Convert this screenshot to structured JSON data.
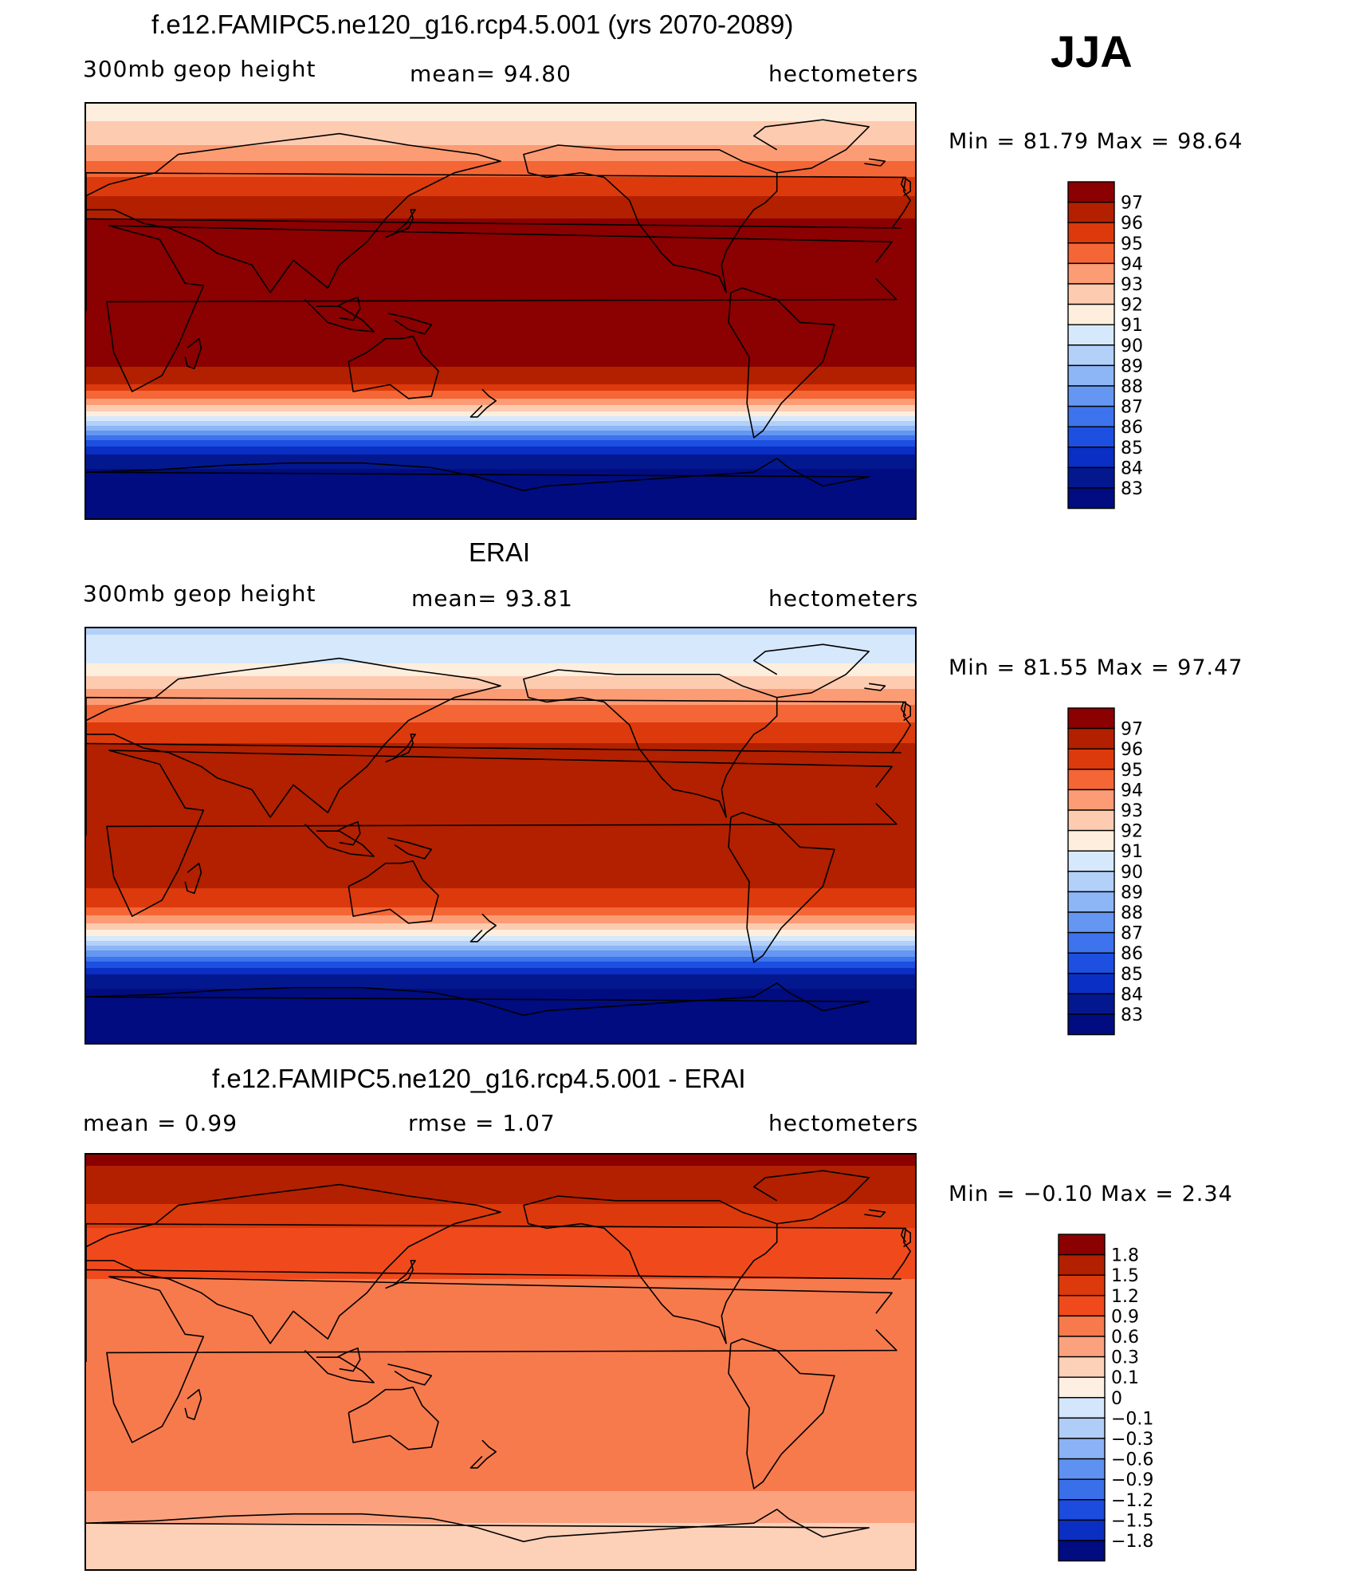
{
  "season": "JJA",
  "panels": [
    {
      "title": "f.e12.FAMIPC5.ne120_g16.rcp4.5.001 (yrs 2070-2089)",
      "left_label": "300mb  geop  height",
      "mid_label": "mean=   94.80",
      "right_label": "hectometers",
      "minmax": "Min  =    81.79  Max  =    98.64"
    },
    {
      "title": "ERAI",
      "left_label": "300mb  geop  height",
      "mid_label": "mean=   93.81",
      "right_label": "hectometers",
      "minmax": "Min  =    81.55  Max  =    97.47"
    },
    {
      "title": "f.e12.FAMIPC5.ne120_g16.rcp4.5.001 - ERAI",
      "left_label": "mean  =     0.99",
      "mid_label": "rmse  =     1.07",
      "right_label": "hectometers",
      "minmax": "Min  =    −0.10  Max  =     2.34"
    }
  ],
  "chart_data": [
    {
      "type": "heatmap",
      "title": "f.e12.FAMIPC5.ne120_g16.rcp4.5.001 (yrs 2070-2089)",
      "variable": "300mb geop height",
      "units": "hectometers",
      "mean": 94.8,
      "min": 81.79,
      "max": 98.64,
      "contour_levels": [
        83,
        84,
        85,
        86,
        87,
        88,
        89,
        90,
        91,
        92,
        93,
        94,
        95,
        96,
        97
      ],
      "level_labels": [
        "97",
        "96",
        "95",
        "94",
        "93",
        "92",
        "91",
        "90",
        "89",
        "88",
        "87",
        "86",
        "85",
        "84",
        "83"
      ],
      "colors": [
        "#8b0000",
        "#b22000",
        "#dc3a0c",
        "#f46636",
        "#fc9c74",
        "#fdcbb0",
        "#feeedd",
        "#d6e8fb",
        "#b3d0f9",
        "#8db6f6",
        "#6596f2",
        "#3d73ec",
        "#1d50e0",
        "#0a2fc4",
        "#03188f",
        "#000c80"
      ],
      "zonal_profile": {
        "lat": [
          90,
          75,
          65,
          55,
          45,
          35,
          20,
          0,
          -20,
          -30,
          -38,
          -45,
          -50,
          -55,
          -60,
          -65,
          -70,
          -90
        ],
        "value": [
          91.5,
          92.5,
          94.0,
          95.5,
          96.5,
          97.5,
          97.6,
          97.6,
          97.4,
          96.5,
          94.0,
          91.5,
          89.0,
          86.5,
          84.5,
          83.5,
          82.8,
          82.5
        ]
      }
    },
    {
      "type": "heatmap",
      "title": "ERAI",
      "variable": "300mb geop height",
      "units": "hectometers",
      "mean": 93.81,
      "min": 81.55,
      "max": 97.47,
      "contour_levels": [
        83,
        84,
        85,
        86,
        87,
        88,
        89,
        90,
        91,
        92,
        93,
        94,
        95,
        96,
        97
      ],
      "level_labels": [
        "97",
        "96",
        "95",
        "94",
        "93",
        "92",
        "91",
        "90",
        "89",
        "88",
        "87",
        "86",
        "85",
        "84",
        "83"
      ],
      "colors": [
        "#8b0000",
        "#b22000",
        "#dc3a0c",
        "#f46636",
        "#fc9c74",
        "#fdcbb0",
        "#feeedd",
        "#d6e8fb",
        "#b3d0f9",
        "#8db6f6",
        "#6596f2",
        "#3d73ec",
        "#1d50e0",
        "#0a2fc4",
        "#03188f",
        "#000c80"
      ],
      "zonal_profile": {
        "lat": [
          90,
          75,
          65,
          55,
          45,
          35,
          20,
          0,
          -20,
          -30,
          -38,
          -45,
          -50,
          -55,
          -60,
          -65,
          -70,
          -90
        ],
        "value": [
          89.8,
          91.0,
          92.8,
          94.2,
          95.5,
          96.5,
          96.8,
          96.6,
          96.3,
          95.3,
          93.0,
          90.5,
          88.0,
          85.8,
          84.0,
          83.2,
          82.6,
          82.3
        ]
      }
    },
    {
      "type": "heatmap",
      "title": "f.e12.FAMIPC5.ne120_g16.rcp4.5.001 - ERAI",
      "units": "hectometers",
      "mean": 0.99,
      "rmse": 1.07,
      "min": -0.1,
      "max": 2.34,
      "contour_levels": [
        -1.8,
        -1.5,
        -1.2,
        -0.9,
        -0.6,
        -0.3,
        -0.1,
        0,
        0.1,
        0.3,
        0.6,
        0.9,
        1.2,
        1.5,
        1.8
      ],
      "level_labels": [
        "1.8",
        "1.5",
        "1.2",
        "0.9",
        "0.6",
        "0.3",
        "0.1",
        "0",
        "−0.1",
        "−0.3",
        "−0.6",
        "−0.9",
        "−1.2",
        "−1.5",
        "−1.8"
      ],
      "colors": [
        "#8b0000",
        "#b22000",
        "#dc3a0c",
        "#f04a1c",
        "#f77a4c",
        "#fba17e",
        "#fdd0b8",
        "#fdefe2",
        "#d4e6fb",
        "#b0cdf8",
        "#8ab2f5",
        "#5f91f1",
        "#3a6fea",
        "#1c4cde",
        "#0b2fc2",
        "#000c80"
      ],
      "zonal_profile": {
        "lat": [
          90,
          75,
          65,
          55,
          40,
          25,
          10,
          0,
          -15,
          -30,
          -45,
          -60,
          -70,
          -80,
          -90
        ],
        "value": [
          1.85,
          1.7,
          1.4,
          1.1,
          0.95,
          0.75,
          0.7,
          0.8,
          0.75,
          0.85,
          0.75,
          0.55,
          0.3,
          0.15,
          0.3
        ]
      }
    }
  ]
}
